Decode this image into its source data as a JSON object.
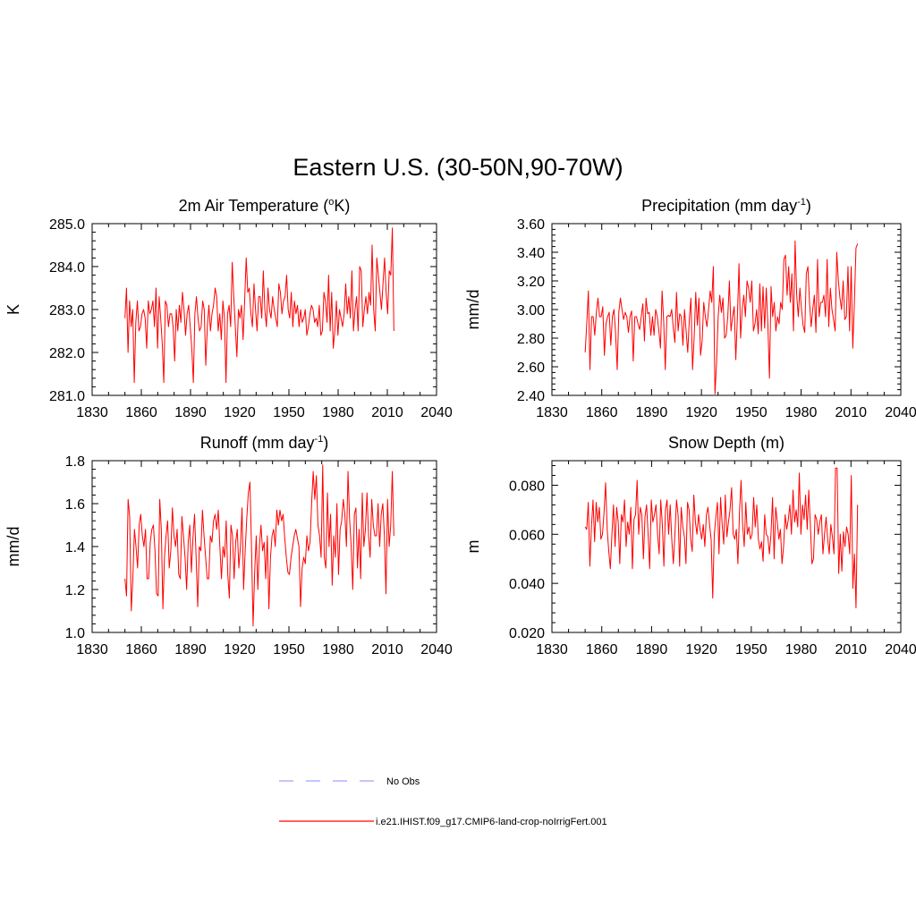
{
  "title": "Eastern U.S. (30-50N,90-70W)",
  "legend": {
    "placement": "bottom-center",
    "entries": [
      {
        "label": "No Obs",
        "color": "#a0a0ff",
        "dash": true
      },
      {
        "label": "i.e21.IHIST.f09_g17.CMIP6-land-crop-noIrrigFert.001",
        "color": "#ff0000",
        "dash": false
      }
    ]
  },
  "chart_data": [
    {
      "type": "line",
      "title": "2m Air Temperature (",
      "title_sup": "o",
      "title_post": "K)",
      "ylabel": "K",
      "xlim": [
        1830,
        2040
      ],
      "ylim": [
        281.0,
        285.0
      ],
      "xticks": [
        1830,
        1860,
        1890,
        1920,
        1950,
        1980,
        2010,
        2040
      ],
      "yticks": [
        "281.0",
        "282.0",
        "283.0",
        "284.0",
        "285.0"
      ],
      "color": "#ff0000",
      "x_start": 1850,
      "values": [
        282.8,
        283.5,
        282.0,
        283.2,
        282.6,
        283.0,
        281.3,
        282.7,
        283.2,
        282.5,
        282.6,
        282.9,
        283.0,
        282.8,
        282.1,
        283.2,
        282.9,
        283.0,
        283.2,
        282.6,
        283.5,
        282.1,
        283.3,
        282.8,
        282.2,
        281.3,
        283.2,
        283.1,
        282.6,
        282.9,
        282.9,
        282.6,
        281.8,
        283.0,
        282.5,
        283.1,
        282.7,
        283.4,
        283.0,
        282.4,
        282.9,
        283.1,
        282.6,
        282.1,
        281.3,
        282.9,
        283.3,
        282.8,
        282.5,
        282.6,
        283.2,
        283.0,
        281.7,
        282.6,
        283.1,
        282.5,
        282.9,
        283.1,
        283.5,
        283.3,
        282.5,
        282.9,
        282.3,
        283.2,
        282.8,
        281.3,
        282.9,
        283.1,
        282.6,
        284.1,
        283.3,
        282.6,
        281.9,
        283.0,
        282.8,
        283.1,
        282.3,
        283.2,
        284.2,
        283.4,
        283.5,
        282.9,
        282.6,
        283.6,
        283.0,
        282.5,
        283.3,
        283.3,
        282.8,
        283.9,
        283.0,
        282.6,
        283.5,
        283.0,
        282.8,
        283.3,
        283.0,
        282.8,
        282.6,
        283.6,
        283.4,
        282.9,
        283.2,
        283.3,
        283.8,
        283.0,
        282.8,
        283.4,
        282.6,
        283.2,
        282.9,
        283.1,
        282.6,
        283.0,
        282.7,
        282.8,
        283.0,
        282.4,
        282.6,
        282.9,
        283.1,
        283.0,
        282.7,
        282.8,
        282.6,
        283.1,
        282.4,
        282.5,
        283.4,
        283.2,
        282.7,
        283.8,
        282.5,
        283.4,
        282.1,
        282.5,
        283.2,
        282.4,
        283.0,
        282.8,
        282.6,
        282.9,
        283.6,
        282.9,
        283.3,
        282.8,
        283.9,
        282.5,
        283.0,
        283.3,
        282.5,
        284.0,
        283.9,
        282.6,
        283.0,
        283.3,
        282.9,
        283.4,
        283.1,
        284.5,
        283.0,
        282.5,
        284.2,
        283.8,
        283.4,
        283.0,
        283.6,
        284.2,
        283.4,
        282.9,
        283.9,
        283.8,
        284.9,
        282.5
      ],
      "x_end": 2014
    },
    {
      "type": "line",
      "title": "Precipitation (mm day",
      "title_sup": "-1",
      "title_post": ")",
      "ylabel": "mm/d",
      "xlim": [
        1830,
        2040
      ],
      "ylim": [
        2.4,
        3.6
      ],
      "xticks": [
        1830,
        1860,
        1890,
        1920,
        1950,
        1980,
        2010,
        2040
      ],
      "yticks": [
        "2.40",
        "2.60",
        "2.80",
        "3.00",
        "3.20",
        "3.40",
        "3.60"
      ],
      "color": "#ff0000",
      "x_start": 1850,
      "values": [
        2.7,
        2.9,
        3.13,
        2.58,
        2.95,
        2.95,
        2.82,
        2.98,
        3.08,
        2.95,
        2.95,
        3.02,
        2.68,
        2.9,
        2.95,
        2.98,
        2.75,
        2.95,
        3.0,
        2.83,
        2.58,
        2.98,
        3.08,
        3.0,
        2.93,
        2.98,
        2.95,
        2.84,
        2.95,
        2.99,
        2.64,
        2.95,
        2.95,
        2.9,
        2.86,
        2.95,
        3.04,
        2.78,
        3.08,
        2.97,
        2.98,
        2.82,
        2.95,
        2.82,
        3.0,
        2.95,
        2.85,
        2.73,
        3.13,
        2.92,
        2.58,
        2.95,
        2.96,
        2.95,
        3.0,
        2.87,
        2.77,
        3.12,
        2.85,
        2.97,
        2.95,
        2.75,
        3.0,
        2.85,
        2.7,
        2.93,
        3.08,
        2.58,
        2.8,
        3.12,
        2.89,
        3.08,
        2.68,
        2.78,
        3.05,
        2.95,
        2.88,
        3.0,
        3.13,
        3.05,
        3.3,
        2.41,
        2.63,
        2.95,
        3.1,
        2.98,
        3.08,
        2.8,
        2.82,
        2.95,
        3.2,
        2.85,
        2.95,
        3.02,
        2.65,
        2.95,
        3.32,
        2.8,
        3.0,
        3.1,
        2.95,
        3.2,
        3.15,
        3.05,
        3.2,
        2.85,
        2.9,
        3.0,
        2.83,
        3.18,
        2.85,
        3.16,
        2.87,
        3.15,
        2.9,
        2.52,
        3.16,
        2.95,
        3.05,
        2.85,
        2.95,
        2.9,
        3.05,
        3.0,
        3.35,
        3.38,
        3.1,
        3.3,
        3.05,
        3.25,
        2.85,
        3.48,
        3.1,
        2.95,
        3.15,
        3.0,
        2.89,
        2.84,
        3.25,
        3.3,
        3.05,
        2.88,
        3.0,
        3.1,
        2.84,
        3.35,
        2.95,
        3.05,
        3.05,
        3.1,
        2.95,
        3.35,
        2.88,
        3.15,
        3.0,
        2.93,
        2.85,
        3.4,
        3.2,
        3.08,
        3.0,
        3.2,
        2.93,
        2.95,
        3.3,
        2.85,
        3.3,
        2.73,
        3.05,
        3.43,
        3.46
      ],
      "x_end": 2014
    },
    {
      "type": "line",
      "title": "Runoff (mm day",
      "title_sup": "-1",
      "title_post": ")",
      "ylabel": "mm/d",
      "xlim": [
        1830,
        2040
      ],
      "ylim": [
        1.0,
        1.8
      ],
      "xticks": [
        1830,
        1860,
        1890,
        1920,
        1950,
        1980,
        2010,
        2040
      ],
      "yticks": [
        "1.0",
        "1.2",
        "1.4",
        "1.6",
        "1.8"
      ],
      "color": "#ff0000",
      "x_start": 1850,
      "values": [
        1.25,
        1.17,
        1.62,
        1.54,
        1.1,
        1.25,
        1.48,
        1.4,
        1.3,
        1.5,
        1.55,
        1.45,
        1.4,
        1.48,
        1.25,
        1.25,
        1.42,
        1.48,
        1.5,
        1.38,
        1.18,
        1.17,
        1.62,
        1.48,
        1.11,
        1.35,
        1.45,
        1.52,
        1.3,
        1.38,
        1.58,
        1.45,
        1.4,
        1.48,
        1.27,
        1.25,
        1.54,
        1.45,
        1.35,
        1.2,
        1.42,
        1.5,
        1.28,
        1.44,
        1.55,
        1.35,
        1.12,
        1.4,
        1.38,
        1.57,
        1.45,
        1.35,
        1.25,
        1.25,
        1.45,
        1.42,
        1.52,
        1.55,
        1.48,
        1.57,
        1.4,
        1.25,
        1.4,
        1.35,
        1.52,
        1.27,
        1.16,
        1.5,
        1.45,
        1.25,
        1.42,
        1.48,
        1.3,
        1.4,
        1.58,
        1.2,
        1.38,
        1.53,
        1.65,
        1.7,
        1.4,
        1.03,
        1.28,
        1.45,
        1.2,
        1.4,
        1.5,
        1.38,
        1.42,
        1.25,
        1.45,
        1.11,
        1.35,
        1.45,
        1.48,
        1.4,
        1.57,
        1.5,
        1.57,
        1.52,
        1.55,
        1.44,
        1.35,
        1.28,
        1.27,
        1.35,
        1.4,
        1.45,
        1.48,
        1.44,
        1.4,
        1.12,
        1.3,
        1.35,
        1.32,
        1.45,
        1.38,
        1.42,
        1.6,
        1.75,
        1.62,
        1.73,
        1.5,
        1.45,
        1.35,
        1.78,
        1.35,
        1.3,
        1.65,
        1.4,
        1.55,
        1.22,
        1.45,
        1.35,
        1.6,
        1.27,
        1.48,
        1.52,
        1.62,
        1.55,
        1.4,
        1.75,
        1.53,
        1.4,
        1.2,
        1.55,
        1.58,
        1.3,
        1.48,
        1.25,
        1.65,
        1.4,
        1.48,
        1.65,
        1.45,
        1.35,
        1.62,
        1.5,
        1.45,
        1.45,
        1.6,
        1.4,
        1.55,
        1.6,
        1.45,
        1.18,
        1.62,
        1.4,
        1.5,
        1.75,
        1.45
      ],
      "x_end": 2014
    },
    {
      "type": "line",
      "title": "Snow Depth (m)",
      "title_sup": "",
      "title_post": "",
      "ylabel": "m",
      "xlim": [
        1830,
        2040
      ],
      "ylim": [
        0.02,
        0.09
      ],
      "xticks": [
        1830,
        1860,
        1890,
        1920,
        1950,
        1980,
        2010,
        2040
      ],
      "yticks": [
        "0.020",
        "0.040",
        "0.060",
        "0.080"
      ],
      "color": "#ff0000",
      "x_start": 1850,
      "values": [
        0.063,
        0.062,
        0.073,
        0.047,
        0.063,
        0.074,
        0.057,
        0.073,
        0.065,
        0.071,
        0.058,
        0.06,
        0.069,
        0.081,
        0.062,
        0.053,
        0.046,
        0.06,
        0.072,
        0.055,
        0.071,
        0.065,
        0.048,
        0.068,
        0.065,
        0.074,
        0.055,
        0.065,
        0.06,
        0.071,
        0.046,
        0.066,
        0.068,
        0.082,
        0.06,
        0.071,
        0.068,
        0.05,
        0.067,
        0.072,
        0.06,
        0.046,
        0.074,
        0.065,
        0.068,
        0.072,
        0.06,
        0.052,
        0.074,
        0.064,
        0.047,
        0.07,
        0.074,
        0.06,
        0.072,
        0.058,
        0.048,
        0.06,
        0.074,
        0.068,
        0.047,
        0.071,
        0.063,
        0.059,
        0.048,
        0.073,
        0.07,
        0.058,
        0.053,
        0.076,
        0.065,
        0.06,
        0.068,
        0.062,
        0.058,
        0.064,
        0.055,
        0.068,
        0.071,
        0.064,
        0.058,
        0.034,
        0.06,
        0.067,
        0.073,
        0.052,
        0.075,
        0.064,
        0.056,
        0.076,
        0.059,
        0.065,
        0.07,
        0.079,
        0.06,
        0.058,
        0.062,
        0.048,
        0.069,
        0.082,
        0.064,
        0.055,
        0.073,
        0.06,
        0.063,
        0.058,
        0.06,
        0.075,
        0.063,
        0.072,
        0.058,
        0.054,
        0.057,
        0.049,
        0.068,
        0.06,
        0.059,
        0.052,
        0.06,
        0.075,
        0.05,
        0.071,
        0.065,
        0.058,
        0.062,
        0.048,
        0.055,
        0.068,
        0.062,
        0.066,
        0.072,
        0.06,
        0.078,
        0.065,
        0.07,
        0.063,
        0.085,
        0.06,
        0.072,
        0.066,
        0.076,
        0.062,
        0.078,
        0.064,
        0.048,
        0.05,
        0.068,
        0.066,
        0.06,
        0.065,
        0.068,
        0.052,
        0.06,
        0.067,
        0.058,
        0.052,
        0.064,
        0.059,
        0.052,
        0.087,
        0.087,
        0.044,
        0.06,
        0.045,
        0.061,
        0.055,
        0.063,
        0.06,
        0.052,
        0.084,
        0.038,
        0.052,
        0.03,
        0.072
      ],
      "x_end": 2014
    }
  ]
}
